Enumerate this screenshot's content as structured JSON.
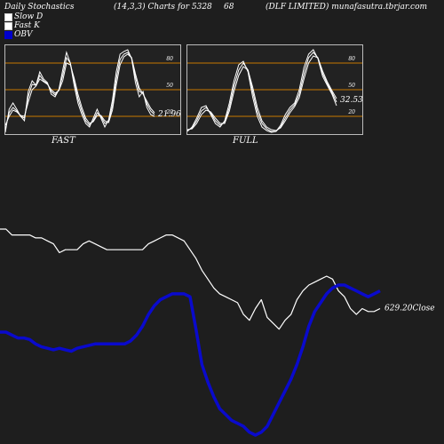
{
  "header": {
    "left": "Daily Stochastics",
    "params": "(14,3,3) Charts for 5328",
    "code": "68",
    "right": "(DLF LIMITED) munafasutra.tbrjar.com"
  },
  "legend": [
    {
      "label": "Slow  D",
      "color": "#ffffff"
    },
    {
      "label": "Fast K",
      "color": "#ffffff"
    },
    {
      "label": "OBV",
      "color": "#0000cc"
    }
  ],
  "colors": {
    "background": "#1e1e1e",
    "level_line": "#c87800",
    "price_line": "#ffffff",
    "obv_line": "#0a0acc",
    "panel_bg": "#222222"
  },
  "chart_data": [
    {
      "type": "line",
      "title": "FAST",
      "ylim": [
        0,
        100
      ],
      "levels": [
        20,
        50,
        80
      ],
      "tick_labels": [
        "80",
        "50",
        "20"
      ],
      "last_value_label": "21.96",
      "series": [
        {
          "values": [
            2,
            28,
            35,
            28,
            20,
            15,
            48,
            60,
            55,
            70,
            62,
            58,
            45,
            42,
            50,
            72,
            92,
            80,
            55,
            35,
            22,
            12,
            8,
            18,
            28,
            18,
            8,
            16,
            38,
            70,
            90,
            93,
            95,
            85,
            58,
            42,
            48,
            30,
            22,
            20
          ]
        },
        {
          "values": [
            6,
            24,
            30,
            26,
            20,
            18,
            42,
            56,
            55,
            66,
            60,
            57,
            48,
            44,
            50,
            66,
            86,
            80,
            60,
            40,
            26,
            15,
            10,
            15,
            24,
            20,
            12,
            14,
            32,
            62,
            84,
            90,
            92,
            86,
            64,
            48,
            46,
            34,
            26,
            22
          ]
        },
        {
          "values": [
            10,
            20,
            27,
            25,
            21,
            20,
            36,
            50,
            54,
            62,
            59,
            56,
            50,
            46,
            49,
            60,
            80,
            78,
            63,
            45,
            30,
            18,
            12,
            14,
            21,
            21,
            15,
            13,
            27,
            55,
            78,
            87,
            90,
            86,
            68,
            52,
            45,
            37,
            29,
            24
          ]
        }
      ]
    },
    {
      "type": "line",
      "title": "FULL",
      "ylim": [
        0,
        100
      ],
      "levels": [
        20,
        50,
        80
      ],
      "tick_labels": [
        "80",
        "50",
        "20"
      ],
      "last_value_label": "32.53",
      "series": [
        {
          "values": [
            3,
            8,
            18,
            30,
            32,
            22,
            12,
            8,
            15,
            35,
            60,
            78,
            82,
            70,
            42,
            20,
            8,
            4,
            2,
            3,
            10,
            22,
            30,
            35,
            50,
            75,
            90,
            95,
            85,
            65,
            55,
            45,
            32
          ]
        },
        {
          "values": [
            4,
            7,
            15,
            26,
            30,
            24,
            15,
            10,
            13,
            30,
            54,
            72,
            80,
            72,
            48,
            25,
            12,
            6,
            3,
            3,
            8,
            18,
            27,
            33,
            45,
            68,
            86,
            92,
            86,
            68,
            57,
            47,
            36
          ]
        },
        {
          "values": [
            5,
            6,
            12,
            22,
            27,
            25,
            18,
            12,
            12,
            26,
            48,
            66,
            76,
            72,
            53,
            30,
            15,
            8,
            5,
            4,
            7,
            15,
            24,
            31,
            41,
            62,
            80,
            88,
            86,
            71,
            59,
            49,
            40
          ]
        }
      ]
    },
    {
      "type": "line",
      "last_value_label": "629.20Close",
      "series": [
        {
          "values": [
            78,
            78,
            74,
            74,
            74,
            74,
            72,
            72,
            70,
            68,
            62,
            64,
            64,
            64,
            68,
            70,
            68,
            66,
            64,
            64,
            64,
            64,
            64,
            64,
            64,
            68,
            70,
            72,
            74,
            74,
            72,
            70,
            64,
            58,
            50,
            44,
            38,
            34,
            32,
            30,
            28,
            20,
            16,
            24,
            30,
            18,
            14,
            10,
            16,
            20,
            30,
            36,
            40,
            42,
            44,
            46,
            44,
            36,
            32,
            24,
            20,
            24,
            22,
            22,
            24
          ]
        },
        {
          "values": [
            8,
            8,
            6,
            4,
            4,
            3,
            0,
            -2,
            -3,
            -4,
            -3,
            -4,
            -5,
            -3,
            -2,
            -1,
            0,
            0,
            0,
            0,
            0,
            0,
            2,
            6,
            12,
            20,
            26,
            30,
            32,
            34,
            34,
            34,
            32,
            10,
            -14,
            -26,
            -36,
            -44,
            -48,
            -52,
            -54,
            -56,
            -60,
            -62,
            -60,
            -56,
            -48,
            -40,
            -32,
            -24,
            -14,
            -2,
            12,
            22,
            28,
            34,
            38,
            40,
            40,
            38,
            36,
            34,
            32,
            34,
            36
          ]
        }
      ]
    }
  ]
}
